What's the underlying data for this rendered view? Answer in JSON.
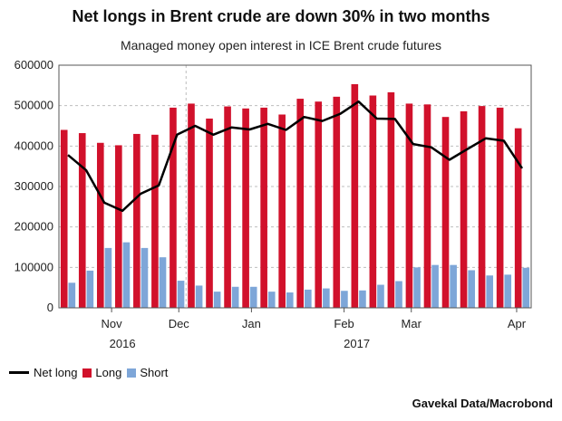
{
  "title": "Net longs in Brent crude are down 30% in two months",
  "subtitle": "Managed money open interest in ICE Brent crude futures",
  "source": "Gavekal Data/Macrobond",
  "colors": {
    "long": "#d1112b",
    "short": "#7ea6d8",
    "net_long": "#000000",
    "grid": "#bdbdbd"
  },
  "chart_data": {
    "type": "bar",
    "ylim": [
      0,
      600000
    ],
    "y_ticks": [
      "0",
      "100000",
      "200000",
      "300000",
      "400000",
      "500000",
      "600000"
    ],
    "x_month_labels": [
      "Nov",
      "Dec",
      "Jan",
      "Feb",
      "Mar",
      "Apr"
    ],
    "x_year_labels": [
      "2016",
      "2017"
    ],
    "legend": {
      "net_long": "Net long",
      "long": "Long",
      "short": "Short"
    },
    "series": [
      {
        "name": "Long",
        "values": [
          440000,
          432000,
          408000,
          402000,
          430000,
          428000,
          495000,
          505000,
          468000,
          498000,
          493000,
          495000,
          478000,
          517000,
          510000,
          522000,
          553000,
          525000,
          533000,
          505000,
          503000,
          472000,
          486000,
          499000,
          495000,
          444000
        ]
      },
      {
        "name": "Short",
        "values": [
          62000,
          92000,
          148000,
          162000,
          148000,
          125000,
          67000,
          55000,
          40000,
          52000,
          52000,
          40000,
          38000,
          45000,
          48000,
          42000,
          43000,
          57000,
          66000,
          100000,
          106000,
          106000,
          93000,
          80000,
          82000,
          99000
        ]
      },
      {
        "name": "Net long",
        "values": [
          378000,
          340000,
          260000,
          240000,
          282000,
          303000,
          428000,
          450000,
          428000,
          446000,
          441000,
          455000,
          440000,
          472000,
          462000,
          480000,
          510000,
          468000,
          467000,
          405000,
          397000,
          366000,
          393000,
          419000,
          413000,
          345000
        ]
      }
    ]
  }
}
